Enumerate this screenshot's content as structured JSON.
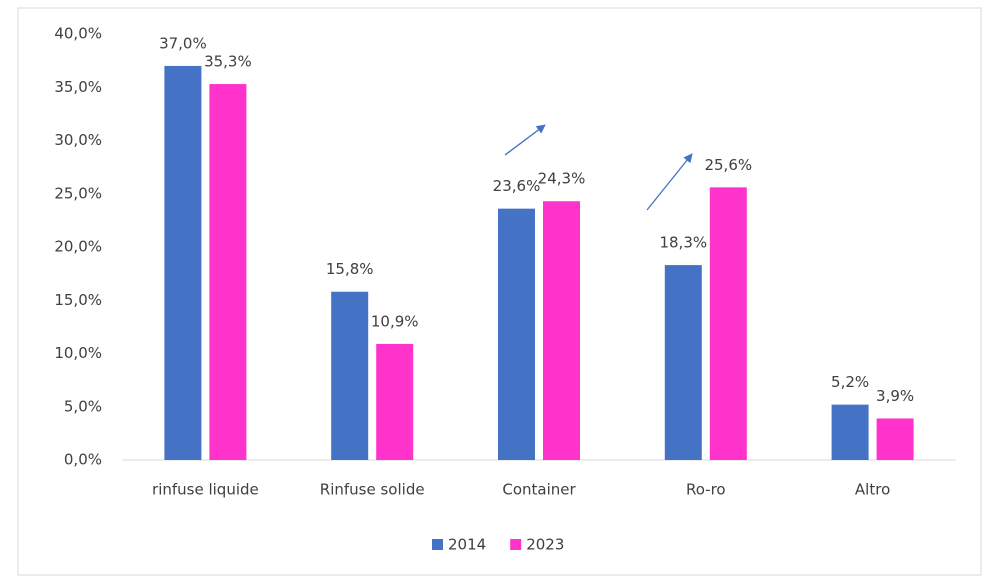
{
  "chart_data": {
    "type": "bar",
    "categories": [
      "rinfuse liquide",
      "Rinfuse solide",
      "Container",
      "Ro-ro",
      "Altro"
    ],
    "series": [
      {
        "name": "2014",
        "color": "#4472c4",
        "values": [
          37.0,
          15.8,
          23.6,
          18.3,
          5.2
        ],
        "value_labels": [
          "37,0%",
          "15,8%",
          "23,6%",
          "18,3%",
          "5,2%"
        ]
      },
      {
        "name": "2023",
        "color": "#ff33cc",
        "values": [
          35.3,
          10.9,
          24.3,
          25.6,
          3.9
        ],
        "value_labels": [
          "35,3%",
          "10,9%",
          "24,3%",
          "25,6%",
          "3,9%"
        ]
      }
    ],
    "ylim": [
      0,
      40
    ],
    "yticks": [
      {
        "value": 0,
        "label": "0,0%"
      },
      {
        "value": 5,
        "label": "5,0%"
      },
      {
        "value": 10,
        "label": "10,0%"
      },
      {
        "value": 15,
        "label": "15,0%"
      },
      {
        "value": 20,
        "label": "20,0%"
      },
      {
        "value": 25,
        "label": "25,0%"
      },
      {
        "value": 30,
        "label": "30,0%"
      },
      {
        "value": 35,
        "label": "35,0%"
      },
      {
        "value": 40,
        "label": "40,0%"
      }
    ],
    "legend": "bottom"
  }
}
